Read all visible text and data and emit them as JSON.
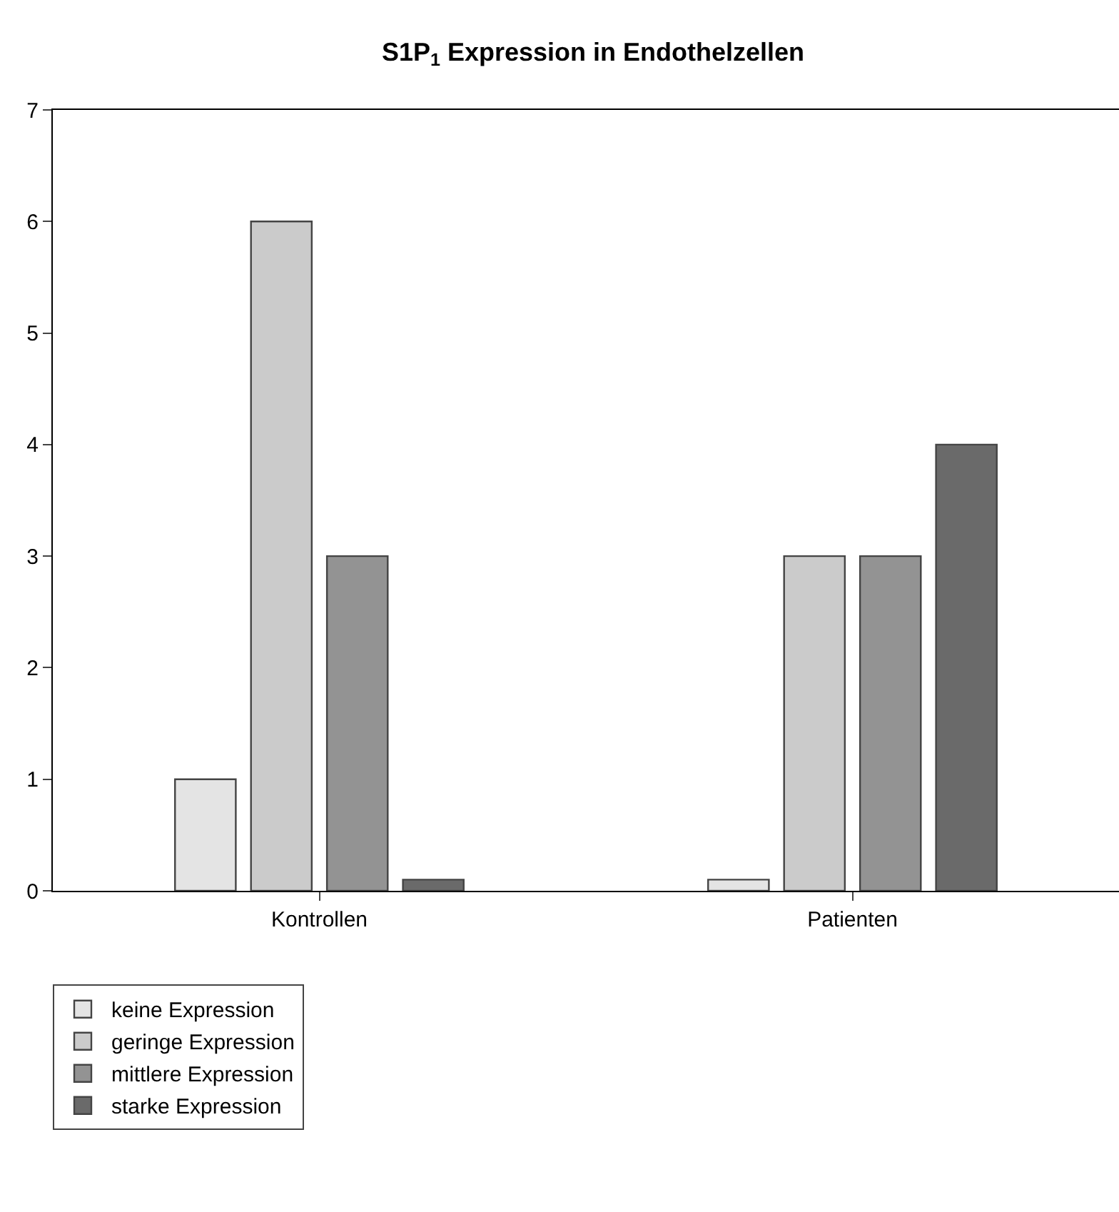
{
  "chart_data": {
    "type": "bar",
    "title": "S1P$_{1}$ Expression in Endothelzellen",
    "categories": [
      "Kontrollen",
      "Patienten"
    ],
    "series": [
      {
        "name": "keine Expression",
        "color": "#e4e4e4",
        "values": [
          1,
          0.1
        ]
      },
      {
        "name": "geringe Expression",
        "color": "#cbcbcb",
        "values": [
          6,
          3
        ]
      },
      {
        "name": "mittlere Expression",
        "color": "#939393",
        "values": [
          3,
          3
        ]
      },
      {
        "name": "starke Expression",
        "color": "#6a6a6a",
        "values": [
          0.1,
          4
        ]
      }
    ],
    "ylim": [
      0,
      7
    ],
    "yticks": [
      0,
      1,
      2,
      3,
      4,
      5,
      6,
      7
    ],
    "grid": false,
    "legend": "bottom left"
  }
}
